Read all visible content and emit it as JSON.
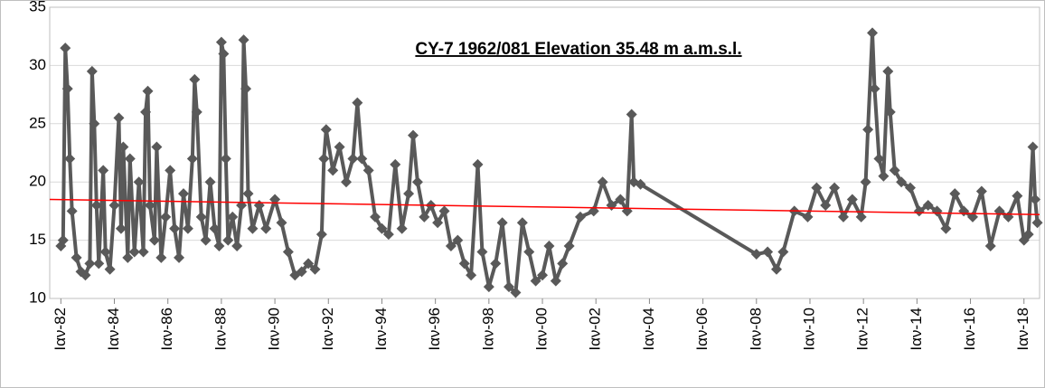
{
  "chart_data": {
    "type": "line",
    "title": "CY-7 1962/081 Elevation 35.48 m a.m.s.l.",
    "x": [
      "1982-01",
      "1982-02",
      "1982-03",
      "1982-04",
      "1982-05",
      "1982-06",
      "1982-08",
      "1982-10",
      "1982-12",
      "1983-02",
      "1983-03",
      "1983-04",
      "1983-05",
      "1983-06",
      "1983-08",
      "1983-09",
      "1983-11",
      "1984-01",
      "1984-03",
      "1984-04",
      "1984-05",
      "1984-07",
      "1984-08",
      "1984-10",
      "1984-12",
      "1985-02",
      "1985-03",
      "1985-04",
      "1985-05",
      "1985-07",
      "1985-08",
      "1985-10",
      "1985-12",
      "1986-02",
      "1986-04",
      "1986-06",
      "1986-08",
      "1986-10",
      "1986-12",
      "1987-01",
      "1987-02",
      "1987-04",
      "1987-06",
      "1987-08",
      "1987-10",
      "1987-12",
      "1988-01",
      "1988-02",
      "1988-03",
      "1988-04",
      "1988-06",
      "1988-08",
      "1988-10",
      "1988-11",
      "1988-12",
      "1989-01",
      "1989-03",
      "1989-06",
      "1989-09",
      "1990-01",
      "1990-04",
      "1990-07",
      "1990-10",
      "1991-01",
      "1991-04",
      "1991-07",
      "1991-10",
      "1991-11",
      "1991-12",
      "1992-03",
      "1992-06",
      "1992-09",
      "1992-12",
      "1993-02",
      "1993-04",
      "1993-07",
      "1993-10",
      "1994-01",
      "1994-04",
      "1994-07",
      "1994-10",
      "1995-01",
      "1995-03",
      "1995-05",
      "1995-08",
      "1995-11",
      "1996-02",
      "1996-05",
      "1996-08",
      "1996-11",
      "1997-02",
      "1997-05",
      "1997-08",
      "1997-10",
      "1998-01",
      "1998-04",
      "1998-07",
      "1998-10",
      "1999-01",
      "1999-04",
      "1999-07",
      "1999-10",
      "2000-01",
      "2000-04",
      "2000-07",
      "2000-10",
      "2001-01",
      "2001-06",
      "2001-12",
      "2002-04",
      "2002-08",
      "2002-12",
      "2003-03",
      "2003-05",
      "2003-06",
      "2003-09",
      "2008-01",
      "2008-06",
      "2008-10",
      "2009-01",
      "2009-06",
      "2009-12",
      "2010-04",
      "2010-08",
      "2010-12",
      "2011-04",
      "2011-08",
      "2011-12",
      "2012-02",
      "2012-03",
      "2012-05",
      "2012-06",
      "2012-08",
      "2012-10",
      "2012-12",
      "2013-01",
      "2013-03",
      "2013-06",
      "2013-10",
      "2014-02",
      "2014-06",
      "2014-10",
      "2015-02",
      "2015-06",
      "2015-10",
      "2016-02",
      "2016-06",
      "2016-10",
      "2017-02",
      "2017-06",
      "2017-10",
      "2018-01",
      "2018-03",
      "2018-05",
      "2018-06",
      "2018-07"
    ],
    "series": [
      {
        "color": "#595959",
        "values": [
          14.5,
          15,
          31.5,
          28,
          22,
          17.5,
          13.5,
          12.3,
          12,
          13,
          29.5,
          25,
          18,
          13,
          21,
          14,
          12.5,
          18,
          25.5,
          16,
          23,
          13.5,
          22,
          14,
          20,
          14,
          26,
          27.8,
          18,
          15,
          23,
          13.5,
          17,
          21,
          16,
          13.5,
          19,
          16,
          22,
          28.8,
          26,
          17,
          15,
          20,
          16,
          14.5,
          32,
          31,
          22,
          15,
          17,
          14.5,
          18,
          32.2,
          28,
          19,
          16,
          18,
          16,
          18.5,
          16.5,
          14,
          12,
          12.3,
          13,
          12.5,
          15.5,
          22,
          24.5,
          21,
          23,
          20,
          22,
          26.8,
          22,
          21,
          17,
          16,
          15.5,
          21.5,
          16,
          19,
          24,
          20,
          17,
          18,
          16.5,
          17.5,
          14.5,
          15,
          13,
          12,
          21.5,
          14,
          11,
          13,
          16.5,
          11,
          10.5,
          16.5,
          14,
          11.5,
          12,
          14.5,
          11.5,
          13,
          14.5,
          17,
          17.5,
          20,
          18,
          18.5,
          17.5,
          25.8,
          20,
          19.8,
          13.8,
          14,
          12.5,
          14,
          17.5,
          17,
          19.5,
          18,
          19.5,
          17,
          18.5,
          17,
          20,
          24.5,
          32.8,
          28,
          22,
          20.5,
          29.5,
          26,
          21,
          20,
          19.5,
          17.5,
          18,
          17.5,
          16,
          19,
          17.5,
          17,
          19.2,
          14.5,
          17.5,
          17,
          18.8,
          15,
          15.5,
          23,
          18.5,
          16.5
        ]
      }
    ],
    "trend": {
      "color": "#ff0000",
      "x": [
        "1981-08",
        "2018-08"
      ],
      "values": [
        18.5,
        17.2
      ]
    },
    "xlim": [
      "1981-08",
      "2018-08"
    ],
    "xticks": [
      {
        "value": "1982-01",
        "label": "Ιαν-82"
      },
      {
        "value": "1984-01",
        "label": "Ιαν-84"
      },
      {
        "value": "1986-01",
        "label": "Ιαν-86"
      },
      {
        "value": "1988-01",
        "label": "Ιαν-88"
      },
      {
        "value": "1990-01",
        "label": "Ιαν-90"
      },
      {
        "value": "1992-01",
        "label": "Ιαν-92"
      },
      {
        "value": "1994-01",
        "label": "Ιαν-94"
      },
      {
        "value": "1996-01",
        "label": "Ιαν-96"
      },
      {
        "value": "1998-01",
        "label": "Ιαν-98"
      },
      {
        "value": "2000-01",
        "label": "Ιαν-00"
      },
      {
        "value": "2002-01",
        "label": "Ιαν-02"
      },
      {
        "value": "2004-01",
        "label": "Ιαν-04"
      },
      {
        "value": "2006-01",
        "label": "Ιαν-06"
      },
      {
        "value": "2008-01",
        "label": "Ιαν-08"
      },
      {
        "value": "2010-01",
        "label": "Ιαν-10"
      },
      {
        "value": "2012-01",
        "label": "Ιαν-12"
      },
      {
        "value": "2014-01",
        "label": "Ιαν-14"
      },
      {
        "value": "2016-01",
        "label": "Ιαν-16"
      },
      {
        "value": "2018-01",
        "label": "Ιαν-18"
      }
    ],
    "ylim": [
      10,
      35
    ],
    "yticks": [
      10,
      15,
      20,
      25,
      30,
      35
    ],
    "grid": true
  }
}
